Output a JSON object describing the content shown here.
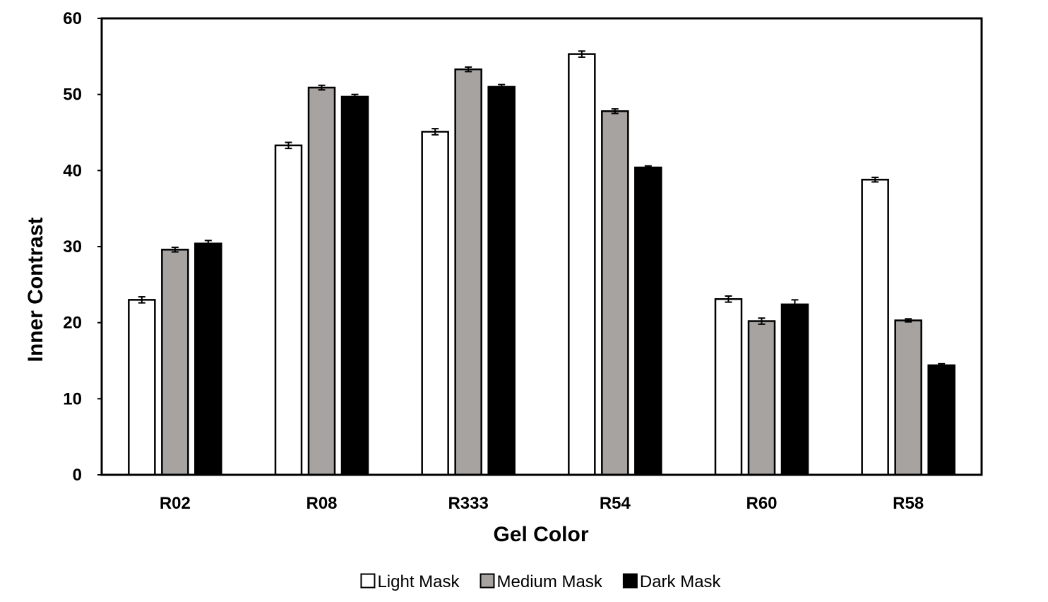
{
  "chart_data": {
    "type": "bar",
    "title": "",
    "xlabel": "Gel Color",
    "ylabel": "Inner Contrast",
    "ylim": [
      0,
      60
    ],
    "yticks": [
      0,
      10,
      20,
      30,
      40,
      50,
      60
    ],
    "categories": [
      "R02",
      "R08",
      "R333",
      "R54",
      "R60",
      "R58"
    ],
    "series": [
      {
        "name": "Light Mask",
        "color": "#ffffff",
        "values": [
          23.0,
          43.3,
          45.1,
          55.3,
          23.1,
          38.8
        ],
        "errors": [
          0.4,
          0.4,
          0.4,
          0.4,
          0.4,
          0.3
        ]
      },
      {
        "name": "Medium Mask",
        "color": "#a6a3a1",
        "values": [
          29.6,
          50.9,
          53.3,
          47.8,
          20.2,
          20.3
        ],
        "errors": [
          0.3,
          0.3,
          0.3,
          0.3,
          0.4,
          0.2
        ]
      },
      {
        "name": "Dark Mask",
        "color": "#000000",
        "values": [
          30.4,
          49.7,
          51.0,
          40.4,
          22.4,
          14.4
        ],
        "errors": [
          0.4,
          0.3,
          0.3,
          0.2,
          0.6,
          0.2
        ]
      }
    ],
    "grid": false,
    "legend_position": "bottom"
  }
}
